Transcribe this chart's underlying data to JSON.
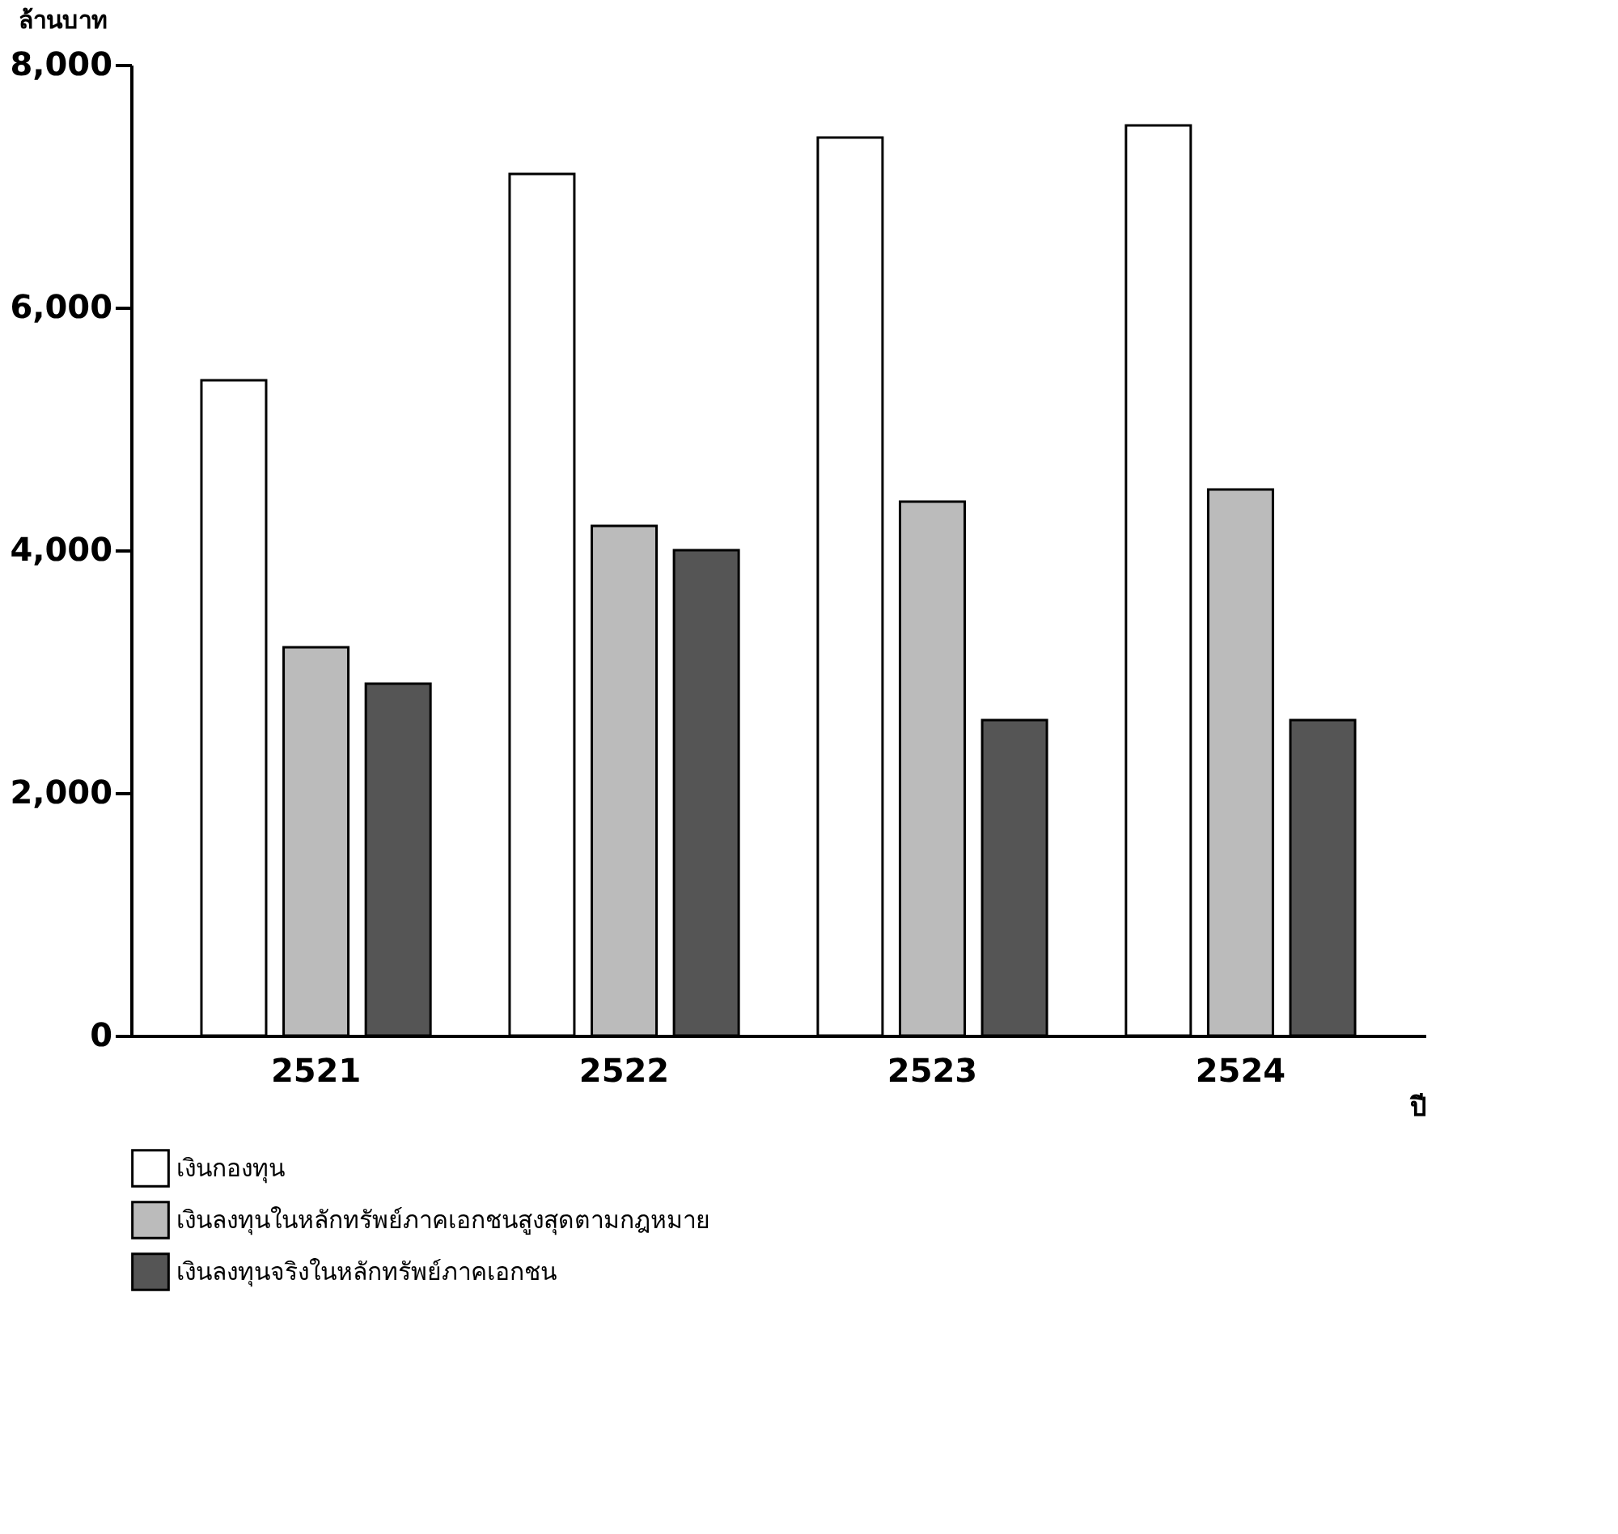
{
  "chart_data": {
    "type": "bar",
    "ylabel": "ล้านบาท",
    "xlabel": "ปี",
    "categories": [
      "2521",
      "2522",
      "2523",
      "2524"
    ],
    "series": [
      {
        "name": "เงินกองทุน",
        "color": "#ffffff",
        "values": [
          5400,
          7100,
          7400,
          7500
        ]
      },
      {
        "name": "เงินลงทุนในหลักทรัพย์ภาคเอกชนสูงสุดตามกฎหมาย",
        "color": "#bbbbbb",
        "values": [
          3200,
          4200,
          4400,
          4500
        ]
      },
      {
        "name": "เงินลงทุนจริงในหลักทรัพย์ภาคเอกชน",
        "color": "#555555",
        "values": [
          2900,
          4000,
          2600,
          2600
        ]
      }
    ],
    "ylim": [
      0,
      8000
    ],
    "yticks": [
      0,
      {
        "value": 2000,
        "label": "2,000"
      },
      {
        "value": 4000,
        "label": "4,000"
      },
      {
        "value": 6000,
        "label": "6,000"
      },
      {
        "value": 8000,
        "label": "8,000"
      }
    ],
    "grid": false,
    "legend": "bottom"
  }
}
